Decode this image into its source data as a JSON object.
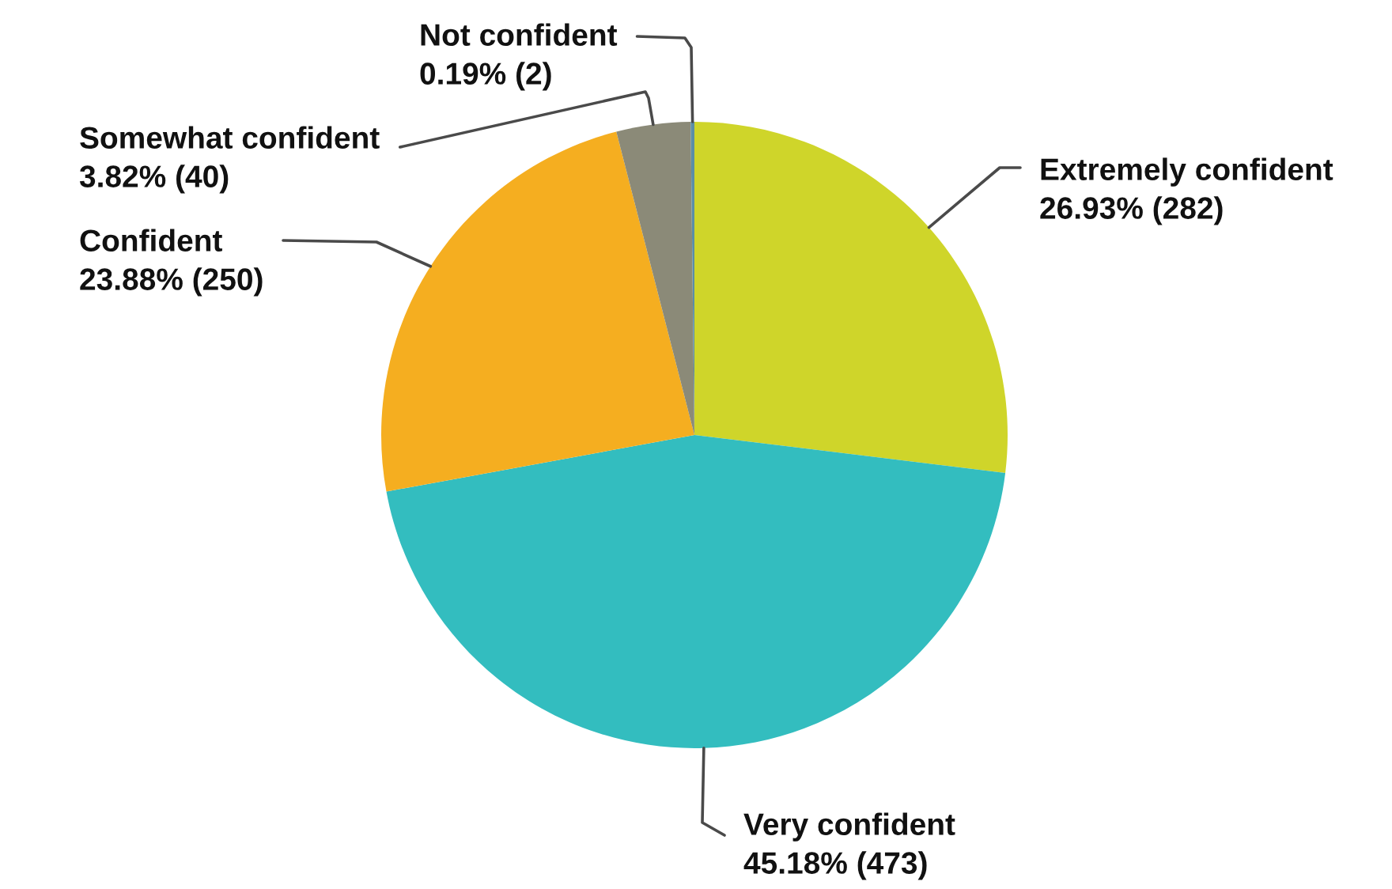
{
  "chart_data": {
    "type": "pie",
    "categories": [
      "Extremely confident",
      "Very confident",
      "Confident",
      "Somewhat confident",
      "Not confident"
    ],
    "values": [
      282,
      473,
      250,
      40,
      2
    ],
    "colors": [
      "#cfd52a",
      "#33bdbf",
      "#f5ae20",
      "#8b8a78",
      "#5b8ea6"
    ],
    "value_labels": [
      "26.93% (282)",
      "45.18% (473)",
      "23.88% (250)",
      "3.82% (40)",
      "0.19% (2)"
    ]
  }
}
